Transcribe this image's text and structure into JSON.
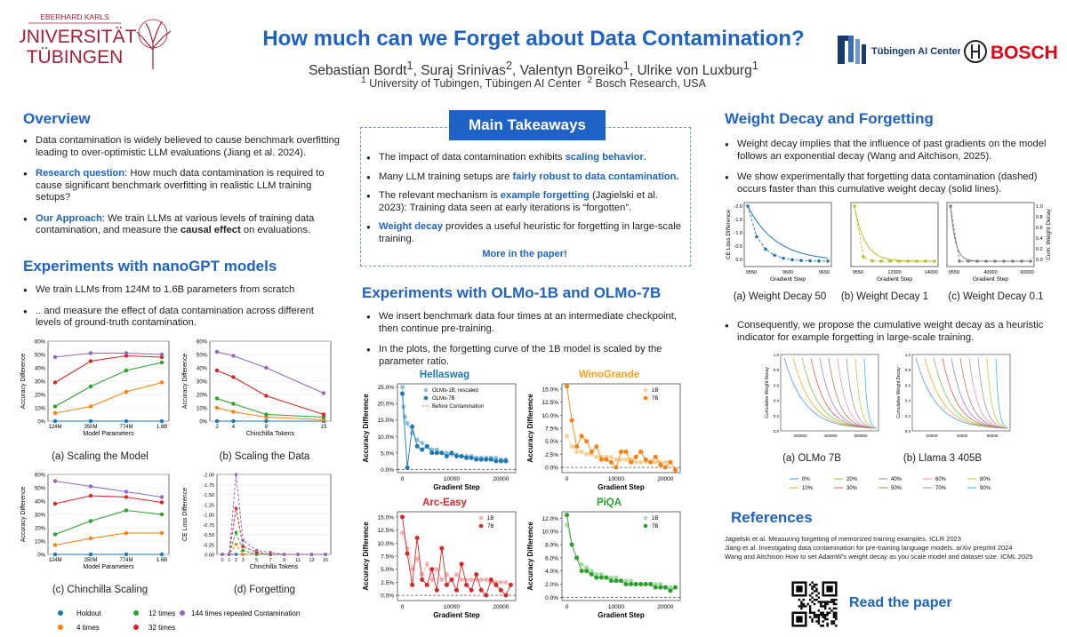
{
  "header": {
    "university_lines": [
      "EBERHARD KARLS",
      "UNIVERSITÄT",
      "TÜBINGEN"
    ],
    "title": "How much can we Forget about Data Contamination?",
    "authors": [
      {
        "name": "Sebastian Bordt",
        "sup": "1"
      },
      {
        "name": "Suraj Srinivas",
        "sup": "2"
      },
      {
        "name": "Valentyn Boreiko",
        "sup": "1"
      },
      {
        "name": "Ulrike von Luxburg",
        "sup": "1"
      }
    ],
    "affiliations": [
      {
        "sup": "1",
        "text": "University of Tubingen, Tübingen AI Center"
      },
      {
        "sup": "2",
        "text": "Bosch Research, USA"
      }
    ],
    "logo_ai_center": "Tübingen AI Center",
    "logo_bosch": "BOSCH"
  },
  "overview": {
    "title": "Overview",
    "b1": "Data contamination is widely believed to cause benchmark overfitting leading to over-optimistic LLM evaluations (Jiang et al. 2024).",
    "b2_label": "Research question",
    "b2": ": How much data contamination is required to cause significant benchmark overfitting in realistic LLM training setups?",
    "b3_label": "Our Approach",
    "b3a": ": We train LLMs at various levels of training data contamination, and measure the ",
    "b3_bold": "causal effect",
    "b3b": " on evaluations."
  },
  "nanogpt": {
    "title": "Experiments with nanoGPT models",
    "b1": "We train LLMs from 124M to 1.6B parameters from scratch",
    "b2": ".. and measure the effect of data contamination across different levels of ground-truth contamination.",
    "cap_a": "(a)  Scaling the Model",
    "cap_b": "(b) Scaling the Data",
    "cap_c": "(c) Chinchilla Scaling",
    "cap_d": "(d) Forgetting",
    "ylabel_acc": "Accuracy Difference",
    "ylabel_ce": "CE Loss Difference",
    "xlabel_params": "Model Parameters",
    "xlabel_tokens": "Chinchilla Tokens",
    "legend": [
      "Holdout",
      "4 times",
      "12 times",
      "32 times",
      "144 times repeated Contamination"
    ]
  },
  "colors": {
    "holdout": "#1f77b4",
    "t4": "#ff7f0e",
    "t12": "#2ca02c",
    "t32": "#d62728",
    "t144": "#9467bd",
    "accent": "#1f62c6"
  },
  "takeaways": {
    "title": "Main Takeaways",
    "b1a": "The impact of data contamination exhibits ",
    "b1_hl": "scaling behavior",
    "b1b": ".",
    "b2a": "Many LLM training setups are ",
    "b2_hl": "fairly robust to data contamination.",
    "b3a": "The relevant mechanism is ",
    "b3_hl": "example forgetting",
    "b3b": " (Jagielski et al. 2023): Training data seen at early iterations is “forgotten”.",
    "b4_hl": "Weight decay",
    "b4b": " provides a useful heuristic for forgetting in large-scale training.",
    "more": "More in the paper!"
  },
  "olmo": {
    "title": "Experiments with OLMo-1B and OLMo-7B",
    "b1": "We insert benchmark data four times at an intermediate checkpoint, then continue pre-training.",
    "b2": "In the plots, the forgetting curve of the 1B model is scaled by the parameter ratio.",
    "ylabel": "Accuracy Difference",
    "xlabel": "Gradient Step",
    "xticks": [
      "0",
      "10000",
      "20000"
    ],
    "hellaswag": {
      "title": "Hellaswag",
      "legend": [
        "OLMo-1B, rescaled",
        "OLMo-7B",
        "Before Contamination"
      ],
      "yticks": [
        "0.0%",
        "5.0%",
        "10.0%",
        "15.0%",
        "20.0%",
        "25.0%"
      ]
    },
    "winogrande": {
      "title": "WinoGrande",
      "legend": [
        "1B",
        "7B"
      ],
      "yticks": [
        "0.0%",
        "2.5%",
        "5.0%",
        "7.5%",
        "10.0%",
        "12.5%",
        "15.0%"
      ]
    },
    "arc": {
      "title": "Arc-Easy",
      "legend": [
        "1B",
        "7B"
      ],
      "yticks": [
        "0.0%",
        "2.5%",
        "5.0%",
        "7.5%",
        "10.0%",
        "12.5%",
        "15.0%"
      ]
    },
    "piqa": {
      "title": "PiQA",
      "legend": [
        "1B",
        "7B"
      ],
      "yticks": [
        "0.0%",
        "2.0%",
        "4.0%",
        "6.0%",
        "8.0%",
        "10.0%",
        "12.0%"
      ]
    }
  },
  "weight_decay": {
    "title": "Weight Decay and Forgetting",
    "b1": "Weight decay implies that the influence of past gradients on the model follows an exponential decay (Wang and Aitchison, 2025).",
    "b2": "We show experimentally that forgetting data contamination (dashed) occurs faster than this cumulative weight decay (solid lines).",
    "ylabel_left": "CE Loss Difference",
    "ylabel_right": "Cum. Weight Decay",
    "xlabel": "Gradient Step",
    "cap_a": "(a) Weight Decay 50",
    "cap_b": "(b) Weight Decay 1",
    "cap_c": "(c) Weight Decay 0.1",
    "b3": "Consequently, we  propose the cumulative weight decay as a heuristic indicator for example forgetting in large-scale training.",
    "cap_olmo": "(a) OLMo 7B",
    "cap_llama": "(b) Llama 3 405B",
    "ylabel_cum": "Cumulative Weight Decay",
    "legend": [
      "0%",
      "10%",
      "20%",
      "30%",
      "40%",
      "50%",
      "60%",
      "70%",
      "80%",
      "90%"
    ]
  },
  "references": {
    "title": "References",
    "r1": "Jagielski et al.  Measuring forgetting of memorized training examples. ICLR 2023",
    "r2": "Jiang et al. Investigating data contamination for pre-training language models. arXiv preprint 2024",
    "r3": "Wang and Aitchison How to set AdamW's weight decay as you scale model and dataset size. ICML 2025",
    "read": "Read the paper"
  },
  "chart_data": [
    {
      "id": "a",
      "type": "line",
      "title": "(a)  Scaling the Model",
      "xlabel": "Model Parameters",
      "ylabel": "Accuracy Difference",
      "categories": [
        "124M",
        "350M",
        "774M",
        "1.6B"
      ],
      "ylim": [
        0,
        60
      ],
      "yticks": [
        "0%",
        "10%",
        "20%",
        "30%",
        "40%",
        "50%",
        "60%"
      ],
      "series": [
        {
          "name": "Holdout",
          "values": [
            0,
            0,
            0,
            0
          ]
        },
        {
          "name": "4 times",
          "values": [
            6,
            11,
            22,
            29
          ]
        },
        {
          "name": "12 times",
          "values": [
            11,
            26,
            38,
            44
          ]
        },
        {
          "name": "32 times",
          "values": [
            29,
            45,
            49,
            48
          ]
        },
        {
          "name": "144 times repeated Contamination",
          "values": [
            48,
            51,
            51,
            50
          ]
        }
      ]
    },
    {
      "id": "b",
      "type": "line",
      "title": "(b) Scaling the Data",
      "xlabel": "Chinchilla Tokens",
      "ylabel": "Accuracy Difference",
      "x": [
        2,
        4,
        8,
        15
      ],
      "xticks": [
        "2",
        "4",
        "8",
        "15"
      ],
      "ylim": [
        0,
        60
      ],
      "yticks": [
        "0%",
        "10%",
        "20%",
        "30%",
        "40%",
        "50%",
        "60%"
      ],
      "series": [
        {
          "name": "Holdout",
          "values": [
            0,
            0,
            0,
            0
          ]
        },
        {
          "name": "4 times",
          "values": [
            10,
            7,
            3,
            1
          ]
        },
        {
          "name": "12 times",
          "values": [
            17,
            13,
            5,
            3
          ]
        },
        {
          "name": "32 times",
          "values": [
            38,
            33,
            19,
            5
          ]
        },
        {
          "name": "144 times repeated Contamination",
          "values": [
            52,
            49,
            40,
            21
          ]
        }
      ]
    },
    {
      "id": "c",
      "type": "line",
      "title": "(c) Chinchilla Scaling",
      "xlabel": "Model Parameters",
      "ylabel": "Accuracy Difference",
      "categories": [
        "124M",
        "350M",
        "774M",
        "1.6B"
      ],
      "ylim": [
        0,
        60
      ],
      "yticks": [
        "0%",
        "10%",
        "20%",
        "30%",
        "40%",
        "50%",
        "60%"
      ],
      "series": [
        {
          "name": "Holdout",
          "values": [
            0,
            0,
            0,
            0
          ]
        },
        {
          "name": "4 times",
          "values": [
            7,
            12,
            16,
            16
          ]
        },
        {
          "name": "12 times",
          "values": [
            15,
            25,
            33,
            30
          ]
        },
        {
          "name": "32 times",
          "values": [
            38,
            44,
            43,
            39
          ]
        },
        {
          "name": "144 times repeated Contamination",
          "values": [
            55,
            51,
            47,
            43
          ]
        }
      ]
    },
    {
      "id": "d",
      "type": "line",
      "title": "(d) Forgetting",
      "xlabel": "Chinchilla Tokens",
      "ylabel": "CE Loss Difference",
      "x": [
        0,
        1,
        2,
        3,
        5,
        7,
        9,
        11,
        13,
        15
      ],
      "xticks": [
        "0",
        "1",
        "2",
        "3",
        "5",
        "7",
        "9",
        "11",
        "13",
        "15"
      ],
      "ylim": [
        0,
        -2.0
      ],
      "yticks": [
        "0.00",
        "-0.25",
        "-0.50",
        "-0.75",
        "-1.00",
        "-1.25",
        "-1.50",
        "-1.75",
        "-2.00"
      ],
      "series": [
        {
          "name": "Holdout",
          "values": [
            0,
            0,
            0,
            0,
            0,
            0,
            0,
            0,
            0,
            0
          ]
        },
        {
          "name": "4 times",
          "values": [
            0,
            0,
            -0.25,
            0,
            0,
            0,
            0,
            0,
            0,
            0
          ]
        },
        {
          "name": "12 times",
          "values": [
            0,
            0,
            -0.55,
            -0.1,
            0,
            0,
            0,
            0,
            0,
            0
          ]
        },
        {
          "name": "32 times",
          "values": [
            0,
            0,
            -1.15,
            -0.2,
            -0.05,
            0,
            0,
            0,
            0,
            0
          ]
        },
        {
          "name": "144 times repeated Contamination",
          "values": [
            0,
            0,
            -2.0,
            -0.35,
            -0.1,
            -0.05,
            0,
            0,
            0,
            0
          ]
        }
      ]
    },
    {
      "id": "hellaswag",
      "type": "scatter",
      "title": "Hellaswag",
      "xlabel": "Gradient Step",
      "ylabel": "Accuracy Difference",
      "xlim": [
        -1000,
        23000
      ],
      "ylim": [
        -1,
        26
      ],
      "series": [
        {
          "name": "OLMo-1B, rescaled",
          "x": [
            0,
            200,
            500,
            1000,
            2000,
            3000,
            4000,
            5000,
            6000,
            7000,
            8000,
            9000,
            10000,
            11000,
            12000,
            13000,
            14000,
            15000,
            16000,
            17000,
            18000,
            19000,
            20000,
            21000
          ],
          "values": [
            25,
            19,
            16,
            14,
            11,
            9,
            8,
            7,
            6,
            6,
            5,
            5,
            4.5,
            4.5,
            4,
            4,
            4,
            3.5,
            3.5,
            3.5,
            3.5,
            3.5,
            3,
            3
          ]
        },
        {
          "name": "OLMo-7B",
          "x": [
            0,
            1000,
            2000,
            3000,
            4000,
            5000,
            6000,
            7000,
            8000,
            9000,
            10000,
            11000,
            12000,
            13000,
            14000,
            15000,
            16000,
            17000,
            18000,
            19000,
            20000,
            21000
          ],
          "values": [
            23,
            0.5,
            13,
            7,
            6,
            7,
            5,
            5,
            5,
            4,
            5,
            4,
            4,
            3.5,
            3.5,
            3,
            3,
            3,
            3,
            2.5,
            2.5,
            2.5
          ]
        },
        {
          "name": "Before Contamination",
          "values": [
            0,
            0
          ]
        }
      ]
    },
    {
      "id": "winogrande",
      "type": "scatter",
      "title": "WinoGrande",
      "xlabel": "Gradient Step",
      "ylabel": "Accuracy Difference",
      "xlim": [
        -1000,
        23000
      ],
      "ylim": [
        -1,
        16
      ],
      "series": [
        {
          "name": "1B",
          "x": [
            0,
            1000,
            2000,
            3000,
            4000,
            5000,
            6000,
            7000,
            8000,
            9000,
            10000,
            11000,
            12000,
            13000,
            14000,
            15000,
            16000,
            17000,
            18000,
            19000,
            20000,
            21000
          ],
          "values": [
            6,
            4,
            3,
            3,
            2.5,
            2.5,
            2,
            2,
            2,
            2,
            1.5,
            1.5,
            1.5,
            1.5,
            1,
            1,
            1,
            1,
            1,
            1,
            1,
            1
          ]
        },
        {
          "name": "7B",
          "x": [
            0,
            1000,
            2000,
            3000,
            4000,
            5000,
            6000,
            7000,
            8000,
            9000,
            10000,
            11000,
            12000,
            13000,
            14000,
            15000,
            16000,
            17000,
            18000,
            19000,
            20000,
            21000,
            22000
          ],
          "values": [
            15.5,
            9,
            4,
            6,
            5,
            3,
            4,
            1.5,
            1.5,
            1,
            0,
            3,
            3,
            1,
            2,
            3,
            1.5,
            1,
            2,
            0.5,
            0,
            1,
            -0.5
          ]
        },
        {
          "name": "Before Contamination",
          "values": [
            0,
            0
          ]
        }
      ]
    },
    {
      "id": "arc",
      "type": "scatter",
      "title": "Arc-Easy",
      "xlabel": "Gradient Step",
      "ylabel": "Accuracy Difference",
      "xlim": [
        -1000,
        23000
      ],
      "ylim": [
        -1,
        16
      ],
      "series": [
        {
          "name": "1B",
          "x": [
            0,
            1000,
            2000,
            3000,
            4000,
            5000,
            6000,
            7000,
            8000,
            9000,
            10000,
            11000,
            12000,
            13000,
            14000,
            15000,
            16000,
            17000,
            18000,
            19000,
            20000,
            21000
          ],
          "values": [
            12,
            9,
            5,
            7,
            4,
            6,
            3,
            5,
            3,
            4,
            3,
            4,
            3,
            3,
            3,
            3,
            3,
            3,
            2.5,
            2.5,
            2.5,
            2.5
          ]
        },
        {
          "name": "7B",
          "x": [
            0,
            1000,
            2000,
            3000,
            4000,
            5000,
            6000,
            7000,
            8000,
            9000,
            10000,
            11000,
            12000,
            13000,
            14000,
            15000,
            16000,
            17000,
            18000,
            19000,
            20000,
            21000,
            22000
          ],
          "values": [
            15,
            8,
            2,
            11,
            3,
            2,
            5,
            1,
            9,
            2,
            3,
            1,
            6,
            2,
            1,
            4,
            1,
            0,
            3,
            2,
            1,
            0,
            2
          ]
        },
        {
          "name": "Before Contamination",
          "values": [
            0,
            0
          ]
        }
      ]
    },
    {
      "id": "piqa",
      "type": "scatter",
      "title": "PiQA",
      "xlabel": "Gradient Step",
      "ylabel": "Accuracy Difference",
      "xlim": [
        -1000,
        23000
      ],
      "ylim": [
        -0.5,
        13
      ],
      "series": [
        {
          "name": "1B",
          "x": [
            0,
            1000,
            2000,
            3000,
            4000,
            5000,
            6000,
            7000,
            8000,
            9000,
            10000,
            11000,
            12000,
            13000,
            14000,
            15000,
            16000,
            17000,
            18000,
            19000,
            20000,
            21000
          ],
          "values": [
            11,
            8,
            6,
            5,
            4.5,
            4,
            3.5,
            3.5,
            3,
            3,
            3,
            2.5,
            2.5,
            2.5,
            2,
            2,
            2,
            2,
            2,
            2,
            1.5,
            1.5
          ]
        },
        {
          "name": "7B",
          "x": [
            0,
            1000,
            2000,
            3000,
            4000,
            5000,
            6000,
            7000,
            8000,
            9000,
            10000,
            11000,
            12000,
            13000,
            14000,
            15000,
            16000,
            17000,
            18000,
            19000,
            20000,
            21000,
            22000
          ],
          "values": [
            12.5,
            8,
            6,
            4,
            4,
            3.5,
            3,
            3,
            3,
            2.5,
            2.5,
            2.5,
            2,
            2,
            2,
            2,
            2,
            2,
            1.5,
            1.5,
            1.5,
            1,
            1.5
          ]
        },
        {
          "name": "Before Contamination",
          "values": [
            0,
            0
          ]
        }
      ]
    }
  ]
}
